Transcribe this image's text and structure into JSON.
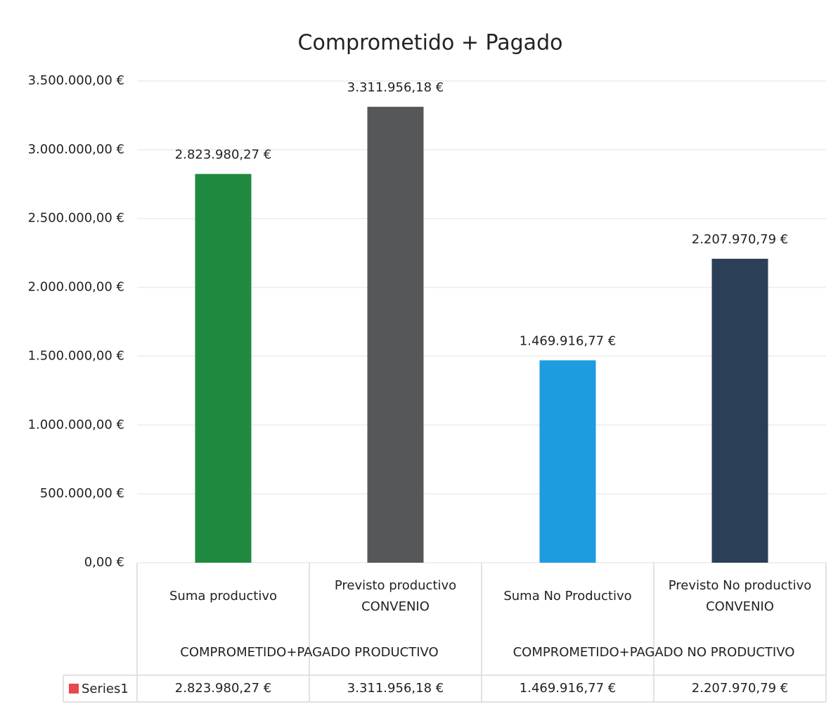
{
  "chart_data": {
    "type": "bar",
    "title": "Comprometido + Pagado",
    "categories": [
      "Suma productivo",
      "Previsto productivo CONVENIO",
      "Suma No Productivo",
      "Previsto No productivo CONVENIO"
    ],
    "groups": [
      "COMPROMETIDO+PAGADO PRODUCTIVO",
      "COMPROMETIDO+PAGADO NO PRODUCTIVO"
    ],
    "series": [
      {
        "name": "Series1",
        "color": "#e8474c",
        "values": [
          2823980.27,
          3311956.18,
          1469916.77,
          2207970.79
        ],
        "value_labels": [
          "2.823.980,27 €",
          "3.311.956,18 €",
          "1.469.916,77 €",
          "2.207.970,79 €"
        ]
      }
    ],
    "bar_colors": [
      "#1f8a3f",
      "#555758",
      "#1d9ce0",
      "#2b3f56"
    ],
    "ylim": [
      0,
      3500000
    ],
    "yticks": [
      {
        "value": 0,
        "label": "0,00 €"
      },
      {
        "value": 500000,
        "label": "500.000,00 €"
      },
      {
        "value": 1000000,
        "label": "1.000.000,00 €"
      },
      {
        "value": 1500000,
        "label": "1.500.000,00 €"
      },
      {
        "value": 2000000,
        "label": "2.000.000,00 €"
      },
      {
        "value": 2500000,
        "label": "2.500.000,00 €"
      },
      {
        "value": 3000000,
        "label": "3.000.000,00 €"
      },
      {
        "value": 3500000,
        "label": "3.500.000,00 €"
      }
    ],
    "grid": true
  }
}
